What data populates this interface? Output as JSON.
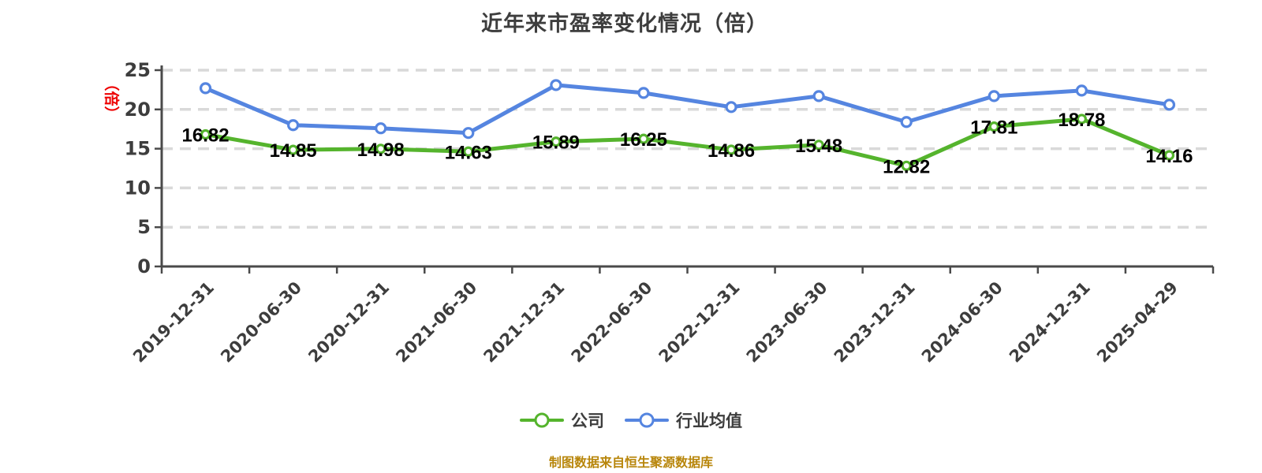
{
  "title": "近年来市盈率变化情况（倍）",
  "y_axis_unit_label": "（倍）",
  "footer_note": "制图数据来自恒生聚源数据库",
  "legend": {
    "position": "bottom",
    "items": [
      {
        "label": "公司",
        "color": "#55B42D"
      },
      {
        "label": "行业均值",
        "color": "#5585E0"
      }
    ]
  },
  "chart_data": {
    "type": "line",
    "title": "近年来市盈率变化情况（倍）",
    "categories": [
      "2019-12-31",
      "2020-06-30",
      "2020-12-31",
      "2021-06-30",
      "2021-12-31",
      "2022-06-30",
      "2022-12-31",
      "2023-06-30",
      "2023-12-31",
      "2024-06-30",
      "2024-12-31",
      "2025-04-29"
    ],
    "series": [
      {
        "name": "公司",
        "color": "#55B42D",
        "point_radius": 5,
        "show_labels": true,
        "values": [
          16.82,
          14.85,
          14.98,
          14.63,
          15.89,
          16.25,
          14.86,
          15.48,
          12.82,
          17.81,
          18.78,
          14.16
        ]
      },
      {
        "name": "行业均值",
        "color": "#5585E0",
        "point_radius": 6,
        "show_labels": false,
        "values": [
          22.7,
          18.0,
          17.6,
          17.0,
          23.1,
          22.1,
          20.3,
          21.7,
          18.4,
          21.7,
          22.4,
          20.6
        ]
      }
    ],
    "xlabel": "",
    "ylabel": "（倍）",
    "ylim": [
      0,
      25
    ],
    "y_ticks": [
      0,
      5,
      10,
      15,
      20,
      25
    ],
    "grid": "dashed horizontal",
    "legend_position": "bottom"
  },
  "colors": {
    "company_line": "#55B42D",
    "industry_line": "#5585E0",
    "grid": "#D9D9D9",
    "axis": "#4A4A4A",
    "title_text": "#3D3D3D",
    "data_label": "#000000",
    "unit_label": "#EE0000",
    "footer": "#B8860B",
    "background": "#FFFFFF"
  }
}
